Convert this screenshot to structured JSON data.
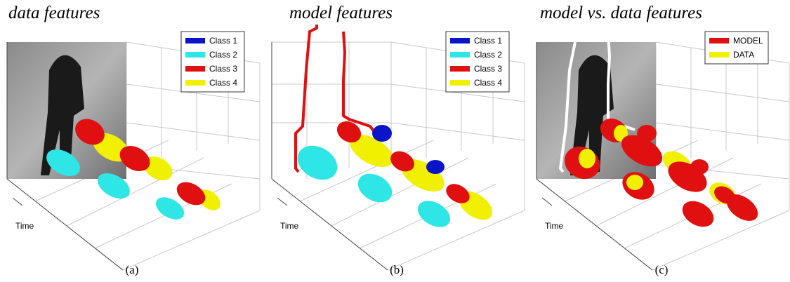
{
  "panels": [
    {
      "title": "data features",
      "legend": [
        {
          "label": "Class 1",
          "color": "#0a14c8"
        },
        {
          "label": "Class 2",
          "color": "#2ee6e6"
        },
        {
          "label": "Class 3",
          "color": "#e01010"
        },
        {
          "label": "Class 4",
          "color": "#f0f000"
        }
      ],
      "axis_label": "Time",
      "caption": "(a)"
    },
    {
      "title": "model features",
      "legend": [
        {
          "label": "Class 1",
          "color": "#0a14c8"
        },
        {
          "label": "Class 2",
          "color": "#2ee6e6"
        },
        {
          "label": "Class 3",
          "color": "#e01010"
        },
        {
          "label": "Class 4",
          "color": "#f0f000"
        }
      ],
      "axis_label": "Time",
      "caption": "(b)"
    },
    {
      "title": "model vs. data features",
      "legend": [
        {
          "label": "MODEL",
          "color": "#e01010"
        },
        {
          "label": "DATA",
          "color": "#f0f000"
        }
      ],
      "axis_label": "Time",
      "caption": "(c)"
    }
  ]
}
